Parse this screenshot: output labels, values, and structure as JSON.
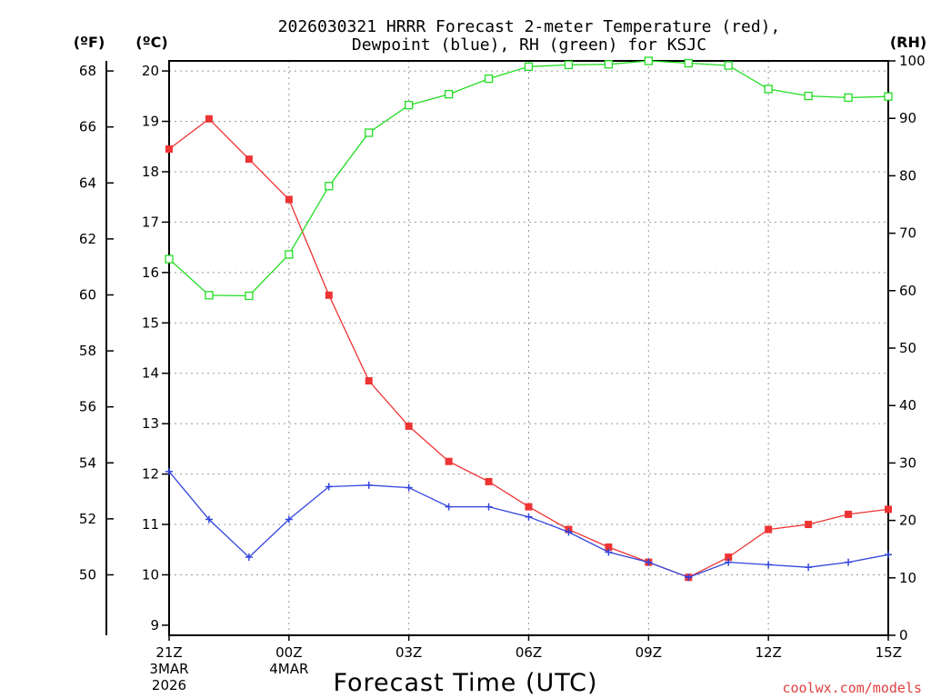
{
  "chart_data": {
    "type": "line",
    "title_line1": "2026030321 HRRR Forecast 2-meter Temperature (red),",
    "title_line2": "Dewpoint (blue), RH (green) for KSJC",
    "xlabel": "Forecast Time (UTC)",
    "unit_f": "(ºF)",
    "unit_c": "(ºC)",
    "unit_rh": "(RH)",
    "watermark": "coolwx.com/models",
    "x_ticks": [
      {
        "hour": 0,
        "label": "21Z",
        "sub1": "3MAR",
        "sub2": "2026"
      },
      {
        "hour": 3,
        "label": "00Z",
        "sub1": "4MAR",
        "sub2": ""
      },
      {
        "hour": 6,
        "label": "03Z",
        "sub1": "",
        "sub2": ""
      },
      {
        "hour": 9,
        "label": "06Z",
        "sub1": "",
        "sub2": ""
      },
      {
        "hour": 12,
        "label": "09Z",
        "sub1": "",
        "sub2": ""
      },
      {
        "hour": 15,
        "label": "12Z",
        "sub1": "",
        "sub2": ""
      },
      {
        "hour": 18,
        "label": "15Z",
        "sub1": "",
        "sub2": ""
      }
    ],
    "x_range": [
      0,
      18
    ],
    "ylim_c": [
      8.8,
      20.2
    ],
    "ylim_rh": [
      0,
      100
    ],
    "yticks_c": [
      9,
      10,
      11,
      12,
      13,
      14,
      15,
      16,
      17,
      18,
      19,
      20
    ],
    "yticks_f": [
      50,
      52,
      54,
      56,
      58,
      60,
      62,
      64,
      66,
      68
    ],
    "yticks_rh": [
      0,
      10,
      20,
      30,
      40,
      50,
      60,
      70,
      80,
      90,
      100
    ],
    "series": [
      {
        "name": "Temperature",
        "color": "#ee3333",
        "marker": "filled-square",
        "values": [
          18.45,
          19.05,
          18.25,
          17.45,
          15.55,
          13.85,
          12.95,
          12.25,
          11.85,
          11.35,
          10.9,
          10.55,
          10.25,
          9.95,
          10.35,
          10.9,
          11.0,
          11.2,
          11.3
        ]
      },
      {
        "name": "Dewpoint",
        "color": "#3344dd",
        "marker": "plus",
        "values": [
          12.05,
          11.1,
          10.35,
          11.1,
          11.75,
          11.78,
          11.73,
          11.35,
          11.35,
          11.15,
          10.85,
          10.45,
          10.25,
          9.95,
          10.25,
          10.2,
          10.15,
          10.25,
          10.4
        ]
      },
      {
        "name": "RH",
        "color": "#22dd22",
        "marker": "open-square",
        "values": [
          65.5,
          59.2,
          59.1,
          66.3,
          78.2,
          87.5,
          92.3,
          94.2,
          96.9,
          99.0,
          99.3,
          99.4,
          100.0,
          99.6,
          99.2,
          95.1,
          93.9,
          93.6,
          93.8
        ]
      }
    ]
  }
}
